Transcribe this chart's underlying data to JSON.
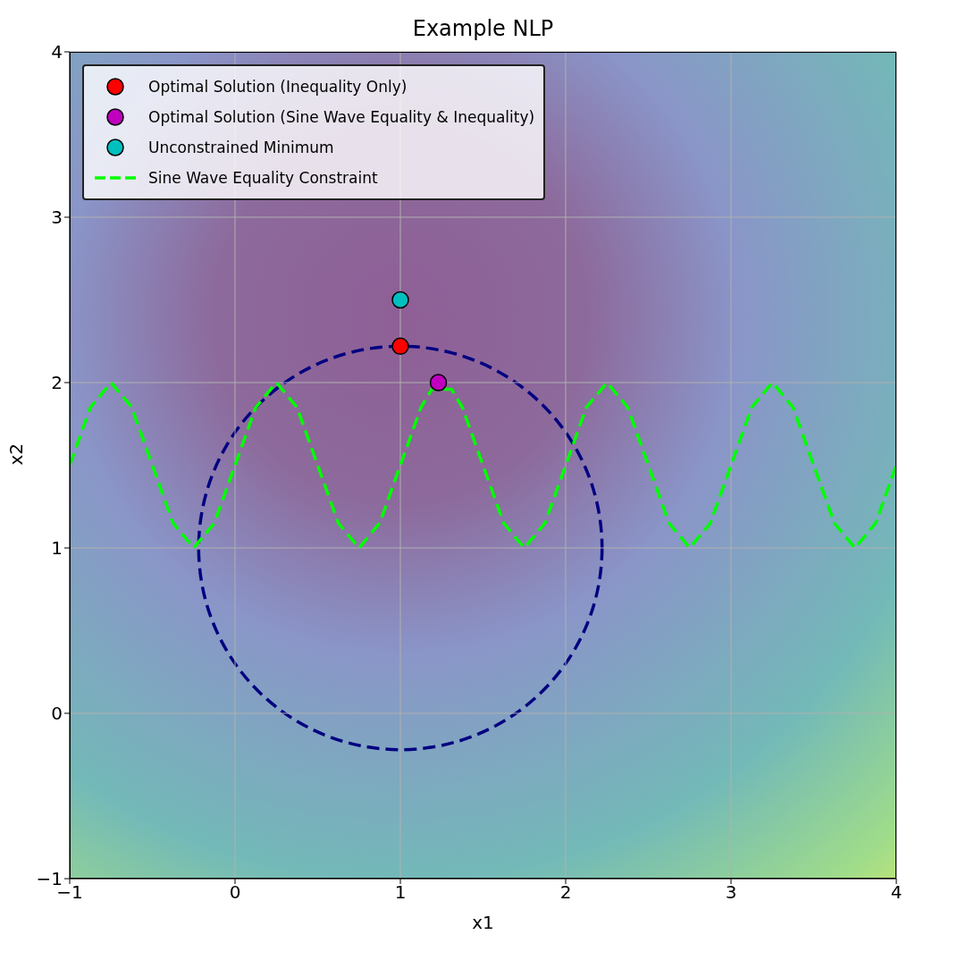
{
  "chart_data": {
    "type": "scatter",
    "title": "Example NLP",
    "xlabel": "x1",
    "ylabel": "x2",
    "xlim": [
      -1,
      4
    ],
    "ylim": [
      -1,
      4
    ],
    "xticks": [
      -1,
      0,
      1,
      2,
      3,
      4
    ],
    "yticks": [
      -1,
      0,
      1,
      2,
      3,
      4
    ],
    "grid": true,
    "legend": "top left",
    "series": [
      {
        "name": "Optimal Solution (Inequality Only)",
        "marker": "circle",
        "color": "#ff0000",
        "x": [
          1
        ],
        "values": [
          2.22
        ]
      },
      {
        "name": "Optimal Solution (Sine Wave Equality & Inequality)",
        "marker": "circle",
        "color": "#bf00bf",
        "x": [
          1.23
        ],
        "values": [
          2.0
        ]
      },
      {
        "name": "Unconstrained Minimum",
        "marker": "circle",
        "color": "#00bfbf",
        "x": [
          1
        ],
        "values": [
          2.5
        ]
      },
      {
        "name": "Sine Wave Equality Constraint",
        "type": "line",
        "line_style": "dashed",
        "color": "#00ff00",
        "x": [
          -1,
          -0.875,
          -0.75,
          -0.625,
          -0.5,
          -0.375,
          -0.25,
          -0.125,
          0,
          0.125,
          0.25,
          0.375,
          0.5,
          0.625,
          0.75,
          0.875,
          1,
          1.125,
          1.19,
          1.31,
          1.375,
          1.5,
          1.625,
          1.75,
          1.875,
          2,
          2.125,
          2.25,
          2.375,
          2.5,
          2.625,
          2.75,
          2.875,
          3,
          3.125,
          3.25,
          3.375,
          3.5,
          3.625,
          3.75,
          3.875,
          4
        ],
        "values": [
          1.5,
          1.85,
          2,
          1.85,
          1.5,
          1.15,
          1,
          1.15,
          1.5,
          1.85,
          2,
          1.85,
          1.5,
          1.15,
          1,
          1.15,
          1.5,
          1.85,
          1.96,
          1.96,
          1.85,
          1.5,
          1.15,
          1,
          1.15,
          1.5,
          1.85,
          2,
          1.85,
          1.5,
          1.15,
          1,
          1.15,
          1.5,
          1.85,
          2,
          1.85,
          1.5,
          1.15,
          1,
          1.15,
          1.5
        ]
      }
    ]
  }
}
